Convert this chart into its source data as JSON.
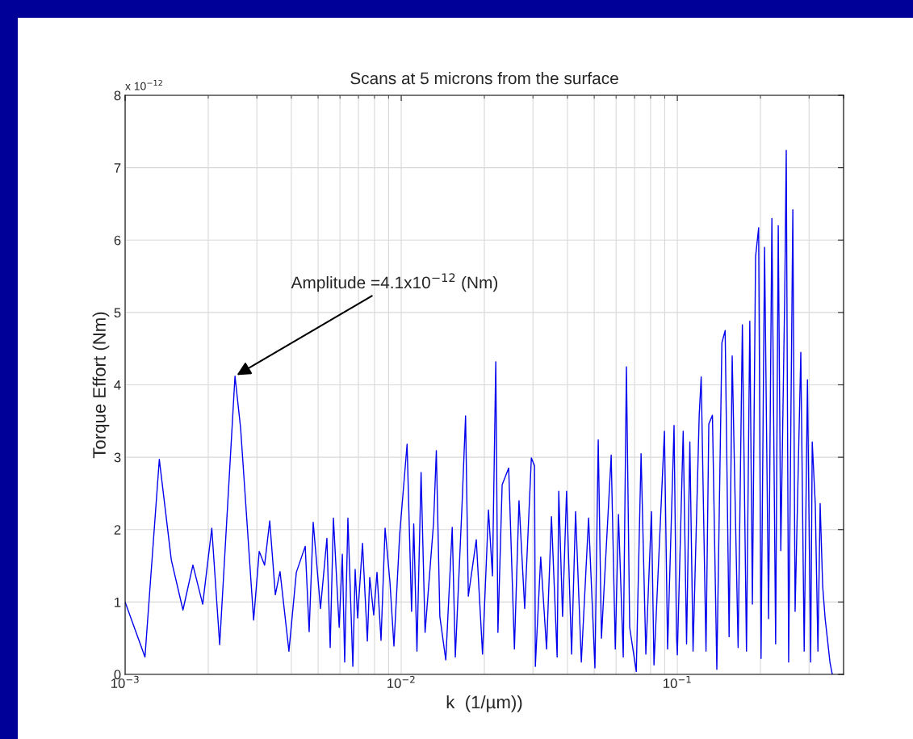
{
  "chart_data": {
    "type": "line",
    "title": "Scans at 5 microns from the surface",
    "xlabel": "k  (1/µm))",
    "ylabel": "Torque Effort (Nm)",
    "log": "x",
    "grid": true,
    "marker": "none",
    "line_style": "solid",
    "xlim": [
      0.001,
      0.4
    ],
    "xticks": [
      {
        "value": 0.001,
        "label": "10$^{−3}$"
      },
      {
        "value": 0.01,
        "label": "10$^{−2}$"
      },
      {
        "value": 0.1,
        "label": "10$^{−1}$"
      }
    ],
    "ylim": [
      0,
      8
    ],
    "yticks": [
      0,
      1,
      2,
      3,
      4,
      5,
      6,
      7,
      8
    ],
    "annotations": [
      "x 10$^{−12}$",
      {
        "text": "Amplitude =4.1x10$^{−12}$ (Nm)",
        "x": 0.0025,
        "y": 4.12
      }
    ],
    "series": [
      {
        "color": "#0000ee",
        "x": [
          0.001,
          0.00118,
          0.00133,
          0.00147,
          0.00162,
          0.00176,
          0.00191,
          0.00206,
          0.0022,
          0.0025,
          0.00262,
          0.00292,
          0.00306,
          0.0032,
          0.00334,
          0.0035,
          0.00364,
          0.00392,
          0.00417,
          0.00449,
          0.00464,
          0.0048,
          0.0051,
          0.00538,
          0.00553,
          0.00568,
          0.00596,
          0.00612,
          0.00624,
          0.00641,
          0.00668,
          0.00681,
          0.00695,
          0.00724,
          0.00754,
          0.00769,
          0.00795,
          0.00817,
          0.00845,
          0.00874,
          0.0091,
          0.00941,
          0.00987,
          0.0105,
          0.0109,
          0.0111,
          0.0114,
          0.0118,
          0.0122,
          0.0131,
          0.0134,
          0.0138,
          0.0145,
          0.0153,
          0.0157,
          0.0166,
          0.0171,
          0.0175,
          0.0187,
          0.0197,
          0.0207,
          0.0214,
          0.022,
          0.0224,
          0.0232,
          0.0245,
          0.0257,
          0.0267,
          0.028,
          0.0296,
          0.0304,
          0.0306,
          0.032,
          0.0336,
          0.035,
          0.0367,
          0.0372,
          0.0384,
          0.0397,
          0.0414,
          0.0428,
          0.0449,
          0.0477,
          0.0503,
          0.0517,
          0.0531,
          0.0576,
          0.0596,
          0.0612,
          0.0637,
          0.0654,
          0.0672,
          0.071,
          0.0739,
          0.0769,
          0.0806,
          0.0823,
          0.0898,
          0.0922,
          0.0973,
          0.0993,
          0.1,
          0.105,
          0.108,
          0.111,
          0.114,
          0.12,
          0.122,
          0.127,
          0.13,
          0.134,
          0.139,
          0.145,
          0.149,
          0.154,
          0.158,
          0.166,
          0.172,
          0.178,
          0.183,
          0.187,
          0.192,
          0.197,
          0.201,
          0.207,
          0.214,
          0.22,
          0.227,
          0.232,
          0.237,
          0.245,
          0.248,
          0.253,
          0.262,
          0.267,
          0.28,
          0.288,
          0.296,
          0.304,
          0.308,
          0.316,
          0.323,
          0.329,
          0.336,
          0.343,
          0.35,
          0.357,
          0.364
        ],
        "values": [
          1.0,
          0.24,
          2.97,
          1.58,
          0.89,
          1.51,
          0.97,
          2.02,
          0.41,
          4.12,
          3.4,
          0.75,
          1.7,
          1.51,
          2.12,
          1.1,
          1.42,
          0.32,
          1.41,
          1.77,
          0.59,
          2.1,
          0.91,
          1.88,
          0.37,
          2.16,
          0.65,
          1.66,
          0.17,
          2.16,
          0.11,
          1.45,
          0.78,
          1.81,
          0.46,
          1.34,
          0.82,
          1.41,
          0.47,
          2.02,
          1.28,
          0.39,
          1.93,
          3.18,
          0.87,
          2.08,
          0.32,
          2.79,
          0.58,
          2.1,
          3.09,
          0.8,
          0.2,
          2.03,
          0.24,
          2.33,
          3.57,
          1.08,
          1.86,
          0.28,
          2.27,
          1.36,
          4.32,
          0.58,
          2.62,
          2.85,
          0.35,
          2.4,
          0.91,
          2.99,
          2.88,
          0.11,
          1.62,
          0.35,
          2.18,
          0.24,
          2.53,
          0.8,
          2.53,
          0.28,
          2.25,
          0.17,
          2.16,
          0.09,
          3.24,
          0.5,
          3.03,
          0.35,
          2.21,
          0.24,
          4.25,
          0.65,
          0.04,
          3.05,
          0.28,
          2.25,
          0.13,
          3.36,
          0.35,
          3.44,
          0.54,
          0.27,
          3.36,
          0.42,
          3.21,
          0.32,
          3.58,
          4.11,
          0.32,
          3.46,
          3.58,
          0.07,
          4.58,
          4.75,
          0.52,
          4.4,
          0.37,
          4.83,
          0.32,
          4.88,
          0.97,
          5.77,
          6.17,
          0.22,
          5.9,
          0.77,
          6.3,
          0.42,
          6.2,
          1.71,
          5.3,
          7.24,
          0.17,
          6.42,
          0.87,
          4.45,
          0.32,
          4.07,
          0.17,
          3.21,
          2.34,
          0.32,
          2.36,
          1.22,
          0.77,
          0.47,
          0.17,
          0.0
        ]
      }
    ]
  }
}
